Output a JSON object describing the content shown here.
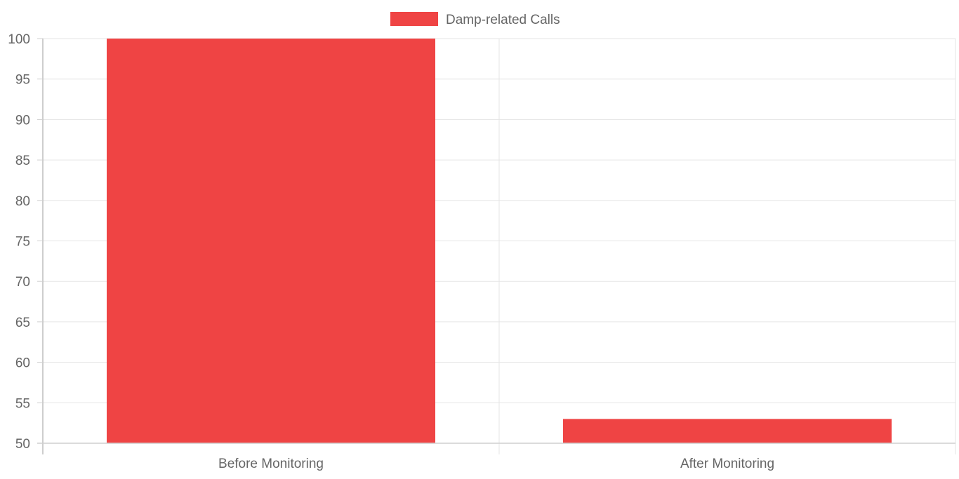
{
  "chart_data": {
    "type": "bar",
    "categories": [
      "Before Monitoring",
      "After Monitoring"
    ],
    "series": [
      {
        "name": "Damp-related Calls",
        "values": [
          100,
          53
        ],
        "color": "#ef4444"
      }
    ],
    "ylim": [
      50,
      100
    ],
    "yticks": [
      50,
      55,
      60,
      65,
      70,
      75,
      80,
      85,
      90,
      95,
      100
    ],
    "grid": true,
    "legend": "top-center"
  }
}
